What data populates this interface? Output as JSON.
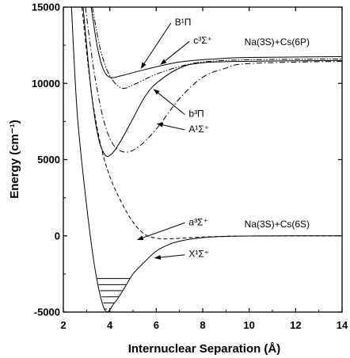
{
  "chart_data": {
    "type": "line",
    "xlabel": "Internuclear Separation (Å)",
    "ylabel": "Energy (cm⁻¹)",
    "xlim": [
      2,
      14
    ],
    "ylim": [
      -5000,
      15000
    ],
    "x_ticks": [
      "2",
      "4",
      "6",
      "8",
      "10",
      "12",
      "14"
    ],
    "y_ticks": [
      "-5000",
      "0",
      "5000",
      "10000",
      "15000"
    ],
    "vibrational_levels_X": [
      -4800,
      -4400,
      -4000,
      -3600,
      -3200,
      -2800
    ],
    "series": [
      {
        "name": "X¹Σ⁺",
        "style": "solid",
        "points": [
          [
            2.35,
            15000
          ],
          [
            2.6,
            8000
          ],
          [
            3.0,
            2000
          ],
          [
            3.4,
            -2500
          ],
          [
            3.8,
            -4900
          ],
          [
            4.2,
            -4400
          ],
          [
            4.6,
            -3500
          ],
          [
            5.0,
            -2500
          ],
          [
            5.5,
            -1700
          ],
          [
            6.0,
            -1000
          ],
          [
            6.5,
            -600
          ],
          [
            7.0,
            -350
          ],
          [
            8.0,
            -120
          ],
          [
            9.0,
            -40
          ],
          [
            10.0,
            -10
          ],
          [
            14.0,
            0
          ]
        ]
      },
      {
        "name": "a³Σ⁺",
        "style": "dashed",
        "points": [
          [
            2.8,
            15000
          ],
          [
            3.2,
            9500
          ],
          [
            3.6,
            6000
          ],
          [
            4.0,
            3900
          ],
          [
            4.5,
            2200
          ],
          [
            5.0,
            900
          ],
          [
            5.5,
            100
          ],
          [
            6.0,
            -150
          ],
          [
            6.5,
            -200
          ],
          [
            7.5,
            -120
          ],
          [
            8.5,
            -50
          ],
          [
            10.0,
            -10
          ],
          [
            14.0,
            0
          ]
        ]
      },
      {
        "name": "A¹Σ⁺",
        "style": "dashdot",
        "points": [
          [
            2.95,
            15000
          ],
          [
            3.3,
            11000
          ],
          [
            3.7,
            7800
          ],
          [
            4.1,
            6100
          ],
          [
            4.6,
            5500
          ],
          [
            5.2,
            5800
          ],
          [
            6.0,
            7000
          ],
          [
            7.0,
            9000
          ],
          [
            8.0,
            10400
          ],
          [
            9.0,
            11000
          ],
          [
            10.0,
            11300
          ],
          [
            14.0,
            11450
          ]
        ]
      },
      {
        "name": "b³Π",
        "style": "solid",
        "points": [
          [
            2.85,
            15000
          ],
          [
            3.2,
            9500
          ],
          [
            3.5,
            6500
          ],
          [
            3.8,
            5300
          ],
          [
            4.1,
            5400
          ],
          [
            4.5,
            6300
          ],
          [
            5.0,
            7700
          ],
          [
            5.5,
            9100
          ],
          [
            6.0,
            10000
          ],
          [
            7.0,
            11000
          ],
          [
            8.0,
            11350
          ],
          [
            10.0,
            11450
          ],
          [
            14.0,
            11500
          ]
        ]
      },
      {
        "name": "c³Σ⁺",
        "style": "dashdotdot",
        "points": [
          [
            3.25,
            15000
          ],
          [
            3.6,
            12200
          ],
          [
            4.0,
            10500
          ],
          [
            4.5,
            9700
          ],
          [
            5.0,
            9900
          ],
          [
            6.0,
            10600
          ],
          [
            7.0,
            11100
          ],
          [
            8.0,
            11400
          ],
          [
            10.0,
            11550
          ],
          [
            14.0,
            11600
          ]
        ]
      },
      {
        "name": "B¹Π",
        "style": "solid",
        "points": [
          [
            3.2,
            15000
          ],
          [
            3.45,
            12500
          ],
          [
            3.7,
            11000
          ],
          [
            4.0,
            10400
          ],
          [
            4.5,
            10500
          ],
          [
            5.5,
            10900
          ],
          [
            7.0,
            11400
          ],
          [
            8.5,
            11600
          ],
          [
            10.0,
            11700
          ],
          [
            14.0,
            11750
          ]
        ]
      }
    ],
    "annotations": [
      {
        "label": "B¹Π",
        "tx": 6.8,
        "ty": 13800,
        "ax": 5.35,
        "ay": 11000
      },
      {
        "label": "c³Σ⁺",
        "tx": 7.6,
        "ty": 12600,
        "ax": 6.2,
        "ay": 11250
      },
      {
        "label": "b³Π",
        "tx": 7.4,
        "ty": 7800,
        "ax": 5.9,
        "ay": 9600
      },
      {
        "label": "A¹Σ⁺",
        "tx": 7.4,
        "ty": 6800,
        "ax": 6.05,
        "ay": 7350
      },
      {
        "label": "a³Σ⁺",
        "tx": 7.4,
        "ty": 700,
        "ax": 5.2,
        "ay": -250
      },
      {
        "label": "X¹Σ⁺",
        "tx": 7.4,
        "ty": -1400,
        "ax": 5.95,
        "ay": -1450
      }
    ],
    "asymptote_labels": [
      {
        "text": "Na(3S)+Cs(6P)",
        "x": 11.2,
        "y": 12500
      },
      {
        "text": "Na(3S)+Cs(6S)",
        "x": 11.2,
        "y": 550
      }
    ]
  }
}
